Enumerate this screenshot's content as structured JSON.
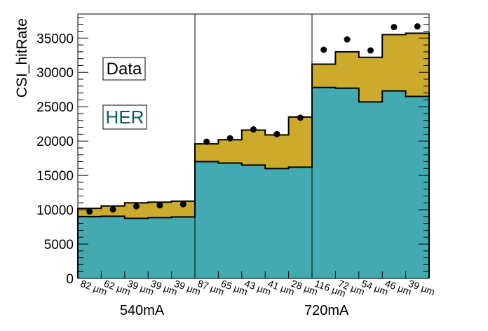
{
  "chart_data": {
    "type": "bar",
    "ylabel": "CSI_hitRate",
    "ylim": [
      0,
      38500
    ],
    "yticks": [
      0,
      5000,
      10000,
      15000,
      20000,
      25000,
      30000,
      35000
    ],
    "categories": [
      "82 μm",
      "62 μm",
      "39 μm",
      "39 μm",
      "39 μm",
      "87 μm",
      "65 μm",
      "43 μm",
      "41 μm",
      "28 μm",
      "116 μm",
      "72 μm",
      "54 μm",
      "46 μm",
      "39 μm"
    ],
    "group_labels": [
      "540mA",
      "720mA"
    ],
    "legend": {
      "data_label": "Data",
      "sim_label": "HER"
    },
    "colors": {
      "her": "#43aab1",
      "other": "#ccaa2b",
      "marker": "#000000",
      "legend_her_text": "#0b5c66"
    },
    "series": [
      {
        "name": "HER",
        "kind": "stacked-bar",
        "values": [
          9000,
          9050,
          8750,
          8850,
          8950,
          17000,
          16800,
          16500,
          16000,
          16200,
          27800,
          27700,
          25700,
          27300,
          26500
        ]
      },
      {
        "name": "",
        "kind": "stacked-bar-top",
        "values": [
          10200,
          10550,
          11000,
          11100,
          11250,
          19600,
          20200,
          21600,
          20900,
          23500,
          31200,
          33000,
          32200,
          35500,
          35700
        ]
      },
      {
        "name": "Data",
        "kind": "markers",
        "values": [
          9750,
          10050,
          10500,
          10650,
          10800,
          19900,
          20400,
          21700,
          21000,
          23400,
          33300,
          34800,
          33200,
          36600,
          36700
        ]
      }
    ]
  }
}
